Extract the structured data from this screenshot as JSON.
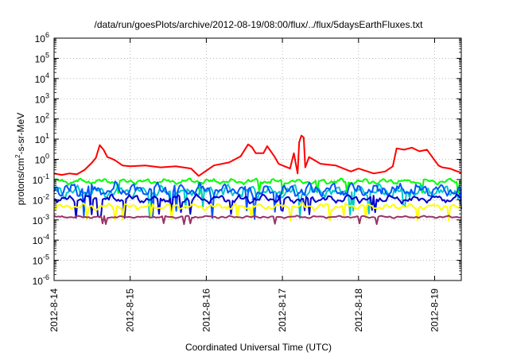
{
  "chart_data": {
    "type": "line",
    "title": "/data/run/goesPlots/archive/2012-08-19/08:00/flux/../flux/5daysEarthFluxes.txt",
    "xlabel": "Coordinated Universal Time (UTC)",
    "ylabel_parts": [
      "protons/cm",
      "2",
      "-s-sr-MeV"
    ],
    "yscale": "log",
    "ylim": [
      -6,
      6
    ],
    "xlim": [
      0,
      5.35
    ],
    "grid": true,
    "x_ticks": [
      {
        "x": 0,
        "label": "2012-8-14"
      },
      {
        "x": 1,
        "label": "2012-8-15"
      },
      {
        "x": 2,
        "label": "2012-8-16"
      },
      {
        "x": 3,
        "label": "2012-8-17"
      },
      {
        "x": 4,
        "label": "2012-8-18"
      },
      {
        "x": 5,
        "label": "2012-8-19"
      }
    ],
    "y_ticks": [
      {
        "exp": 6,
        "label": "10",
        "sup": "6"
      },
      {
        "exp": 5,
        "label": "10",
        "sup": "5"
      },
      {
        "exp": 4,
        "label": "10",
        "sup": "4"
      },
      {
        "exp": 3,
        "label": "10",
        "sup": "3"
      },
      {
        "exp": 2,
        "label": "10",
        "sup": "2"
      },
      {
        "exp": 1,
        "label": "10",
        "sup": "1"
      },
      {
        "exp": 0,
        "label": "10",
        "sup": "0"
      },
      {
        "exp": -1,
        "label": "10",
        "sup": "-1"
      },
      {
        "exp": -2,
        "label": "10",
        "sup": "-2"
      },
      {
        "exp": -3,
        "label": "10",
        "sup": "-3"
      },
      {
        "exp": -4,
        "label": "10",
        "sup": "-4"
      },
      {
        "exp": -5,
        "label": "10",
        "sup": "-5"
      },
      {
        "exp": -6,
        "label": "10",
        "sup": "-6"
      }
    ],
    "series": [
      {
        "color": "#ff0000",
        "x": [
          0,
          0.1,
          0.2,
          0.3,
          0.4,
          0.5,
          0.55,
          0.6,
          0.65,
          0.7,
          0.75,
          0.8,
          0.9,
          1.0,
          1.2,
          1.4,
          1.6,
          1.8,
          1.9,
          2.1,
          2.3,
          2.45,
          2.55,
          2.6,
          2.65,
          2.75,
          2.8,
          2.9,
          2.95,
          3.0,
          3.1,
          3.15,
          3.2,
          3.22,
          3.25,
          3.28,
          3.3,
          3.35,
          3.5,
          3.7,
          3.9,
          4.0,
          4.2,
          4.35,
          4.45,
          4.5,
          4.6,
          4.7,
          4.8,
          4.9,
          5.0,
          5.05,
          5.1,
          5.2,
          5.3,
          5.35
        ],
        "y": [
          0.2,
          0.17,
          0.2,
          0.18,
          0.3,
          0.7,
          1.2,
          5,
          3,
          1.3,
          1.1,
          0.9,
          0.5,
          0.45,
          0.5,
          0.4,
          0.45,
          0.35,
          0.15,
          0.5,
          0.7,
          1.4,
          5.5,
          4,
          2,
          2,
          4.5,
          1.3,
          0.6,
          0.5,
          0.35,
          2,
          0.2,
          7,
          15,
          12,
          0.4,
          1.3,
          0.6,
          0.5,
          0.25,
          0.35,
          0.2,
          0.25,
          0.45,
          3.5,
          3,
          3.8,
          2.5,
          3,
          0.9,
          0.5,
          0.4,
          0.35,
          0.25,
          0.22
        ]
      },
      {
        "color": "#00ff00",
        "base": 0.08,
        "amp": 0.12,
        "phase": 0.3
      },
      {
        "color": "#00c8c8",
        "base": 0.025,
        "amp": 0.28,
        "phase": 1.7
      },
      {
        "color": "#0055ff",
        "base": 0.03,
        "amp": 0.3,
        "phase": 2.9
      },
      {
        "color": "#0000cc",
        "base": 0.011,
        "amp": 0.18,
        "phase": 4.1
      },
      {
        "color": "#ffff00",
        "base": 0.0045,
        "amp": 0.14,
        "phase": 5.3
      },
      {
        "color": "#993366",
        "base": 0.0014,
        "amp": 0.05,
        "phase": 0.9
      }
    ]
  }
}
